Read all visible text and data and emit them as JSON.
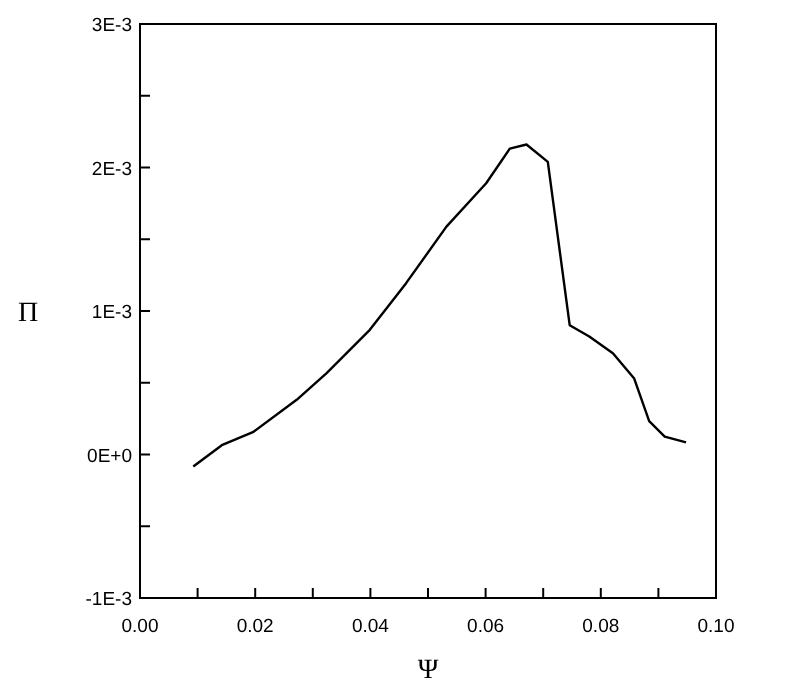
{
  "chart_data": {
    "type": "line",
    "xlabel": "Ψ",
    "ylabel": "Π",
    "x": [
      0.00925,
      0.0142,
      0.0197,
      0.0272,
      0.0324,
      0.0399,
      0.0462,
      0.0532,
      0.0601,
      0.0642,
      0.0671,
      0.0708,
      0.0746,
      0.078,
      0.0821,
      0.0858,
      0.0884,
      0.0911,
      0.0948
    ],
    "series": [
      {
        "color": "#000000",
        "values": [
          -8.4e-05,
          6.5e-05,
          0.000158,
          0.000381,
          0.000567,
          0.000869,
          0.001194,
          0.001588,
          0.00189,
          0.002132,
          0.00216,
          0.002039,
          0.000901,
          0.000822,
          0.000706,
          0.000529,
          0.000232,
          0.000125,
          8.4e-05
        ]
      }
    ],
    "xlim": [
      0,
      0.1
    ],
    "xticks": [
      {
        "value": 0,
        "label": "0.00"
      },
      {
        "value": 0.01,
        "label": null
      },
      {
        "value": 0.02,
        "label": "0.02"
      },
      {
        "value": 0.03,
        "label": null
      },
      {
        "value": 0.04,
        "label": "0.04"
      },
      {
        "value": 0.05,
        "label": null
      },
      {
        "value": 0.06,
        "label": "0.06"
      },
      {
        "value": 0.07,
        "label": null
      },
      {
        "value": 0.08,
        "label": "0.08"
      },
      {
        "value": 0.09,
        "label": null
      },
      {
        "value": 0.1,
        "label": "0.10"
      }
    ],
    "ylim": [
      -0.001,
      0.003
    ],
    "yticks": [
      {
        "value": -0.001,
        "label": "-1E-3"
      },
      {
        "value": -0.0005,
        "label": null
      },
      {
        "value": 0,
        "label": "0E+0"
      },
      {
        "value": 0.0005,
        "label": null
      },
      {
        "value": 0.001,
        "label": "1E-3"
      },
      {
        "value": 0.0015,
        "label": null
      },
      {
        "value": 0.002,
        "label": "2E-3"
      },
      {
        "value": 0.0025,
        "label": null
      },
      {
        "value": 0.003,
        "label": "3E-3"
      }
    ],
    "grid": false,
    "marker": "none",
    "line_style": "solid"
  }
}
